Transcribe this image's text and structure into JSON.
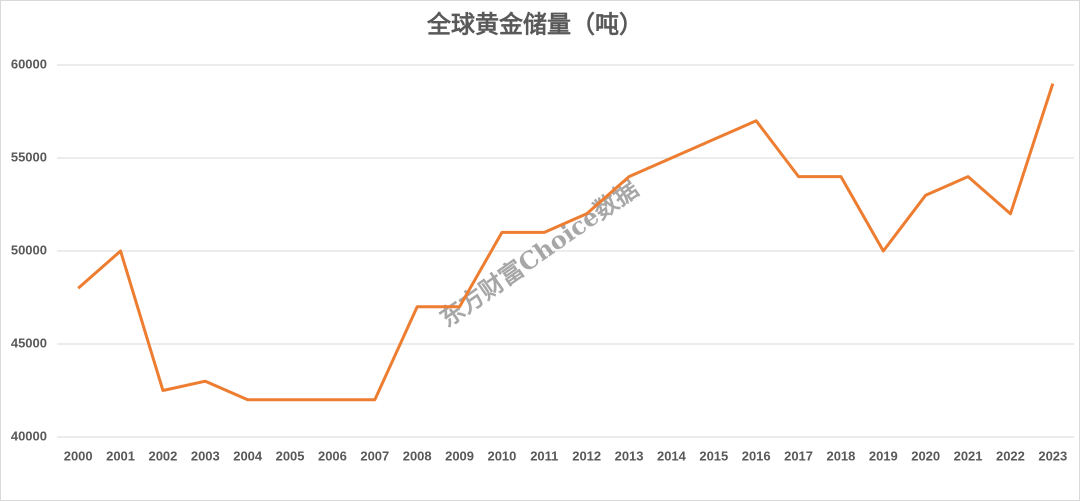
{
  "chart_data": {
    "type": "line",
    "title": "全球黄金储量（吨）",
    "watermark": "东方财富Choice数据",
    "categories": [
      "2000",
      "2001",
      "2002",
      "2003",
      "2004",
      "2005",
      "2006",
      "2007",
      "2008",
      "2009",
      "2010",
      "2011",
      "2012",
      "2013",
      "2014",
      "2015",
      "2016",
      "2017",
      "2018",
      "2019",
      "2020",
      "2021",
      "2022",
      "2023"
    ],
    "series": [
      {
        "name": null,
        "color": "#ED7D31",
        "values": [
          48000,
          50000,
          42500,
          43000,
          42000,
          42000,
          42000,
          42000,
          47000,
          47000,
          51000,
          51000,
          52000,
          54000,
          55000,
          56000,
          57000,
          54000,
          54000,
          50000,
          53000,
          54000,
          52000,
          59000
        ]
      }
    ],
    "ylim": [
      40000,
      60000
    ],
    "yticks": [
      40000,
      45000,
      50000,
      55000,
      60000
    ],
    "grid": true
  }
}
